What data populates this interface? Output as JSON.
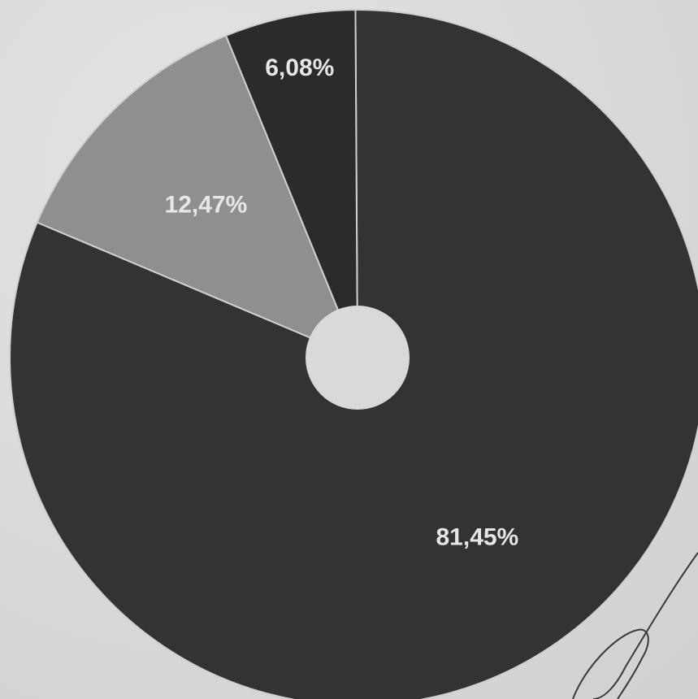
{
  "chart_data": {
    "type": "pie",
    "donut": true,
    "title": "",
    "slices": [
      {
        "label": "81,45%",
        "value": 81.45,
        "color": "#333333"
      },
      {
        "label": "12,47%",
        "value": 12.47,
        "color": "#8f8f8f"
      },
      {
        "label": "6,08%",
        "value": 6.08,
        "color": "#2b2b2b"
      }
    ],
    "legend": "none",
    "background_color": "#dcdcdc"
  }
}
